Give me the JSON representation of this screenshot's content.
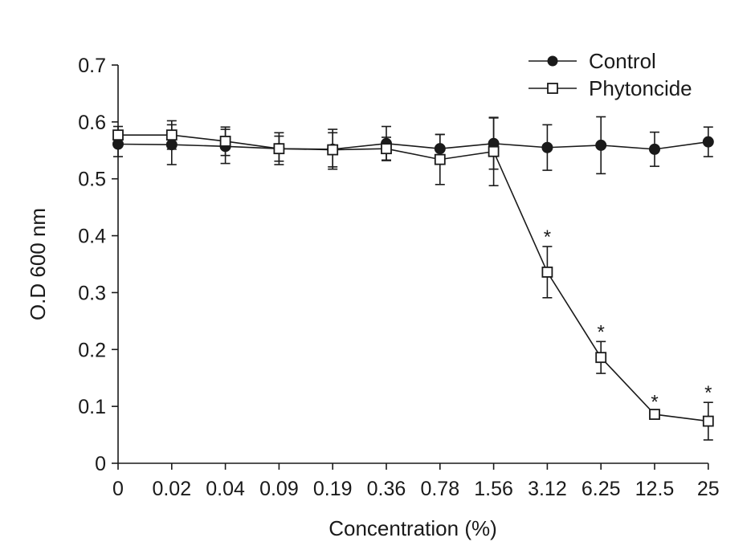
{
  "chart_data": {
    "type": "line",
    "title": "",
    "xlabel": "Concentration (%)",
    "ylabel": "O.D 600 nm",
    "categories": [
      "0",
      "0.02",
      "0.04",
      "0.09",
      "0.19",
      "0.36",
      "0.78",
      "1.56",
      "3.12",
      "6.25",
      "12.5",
      "25"
    ],
    "ylim": [
      0,
      0.7
    ],
    "yticks": [
      "0",
      "0.1",
      "0.2",
      "0.3",
      "0.4",
      "0.5",
      "0.6",
      "0.7"
    ],
    "legend_position": "top-right",
    "series": [
      {
        "name": "Control",
        "marker": "filled-circle",
        "values": [
          0.561,
          0.56,
          0.557,
          0.553,
          0.552,
          0.562,
          0.553,
          0.562,
          0.555,
          0.559,
          0.552,
          0.565
        ],
        "errors": [
          0.022,
          0.035,
          0.03,
          0.028,
          0.035,
          0.03,
          0.025,
          0.045,
          0.04,
          0.05,
          0.03,
          0.026
        ]
      },
      {
        "name": "Phytoncide",
        "marker": "open-square",
        "values": [
          0.577,
          0.577,
          0.566,
          0.553,
          0.551,
          0.553,
          0.534,
          0.548,
          0.336,
          0.186,
          0.086,
          0.074
        ],
        "errors": [
          0.015,
          0.025,
          0.025,
          0.022,
          0.03,
          0.02,
          0.044,
          0.06,
          0.045,
          0.028,
          0.005,
          0.033
        ],
        "significance": [
          false,
          false,
          false,
          false,
          false,
          false,
          false,
          false,
          true,
          true,
          true,
          true
        ]
      }
    ],
    "significance_marker": "*"
  }
}
